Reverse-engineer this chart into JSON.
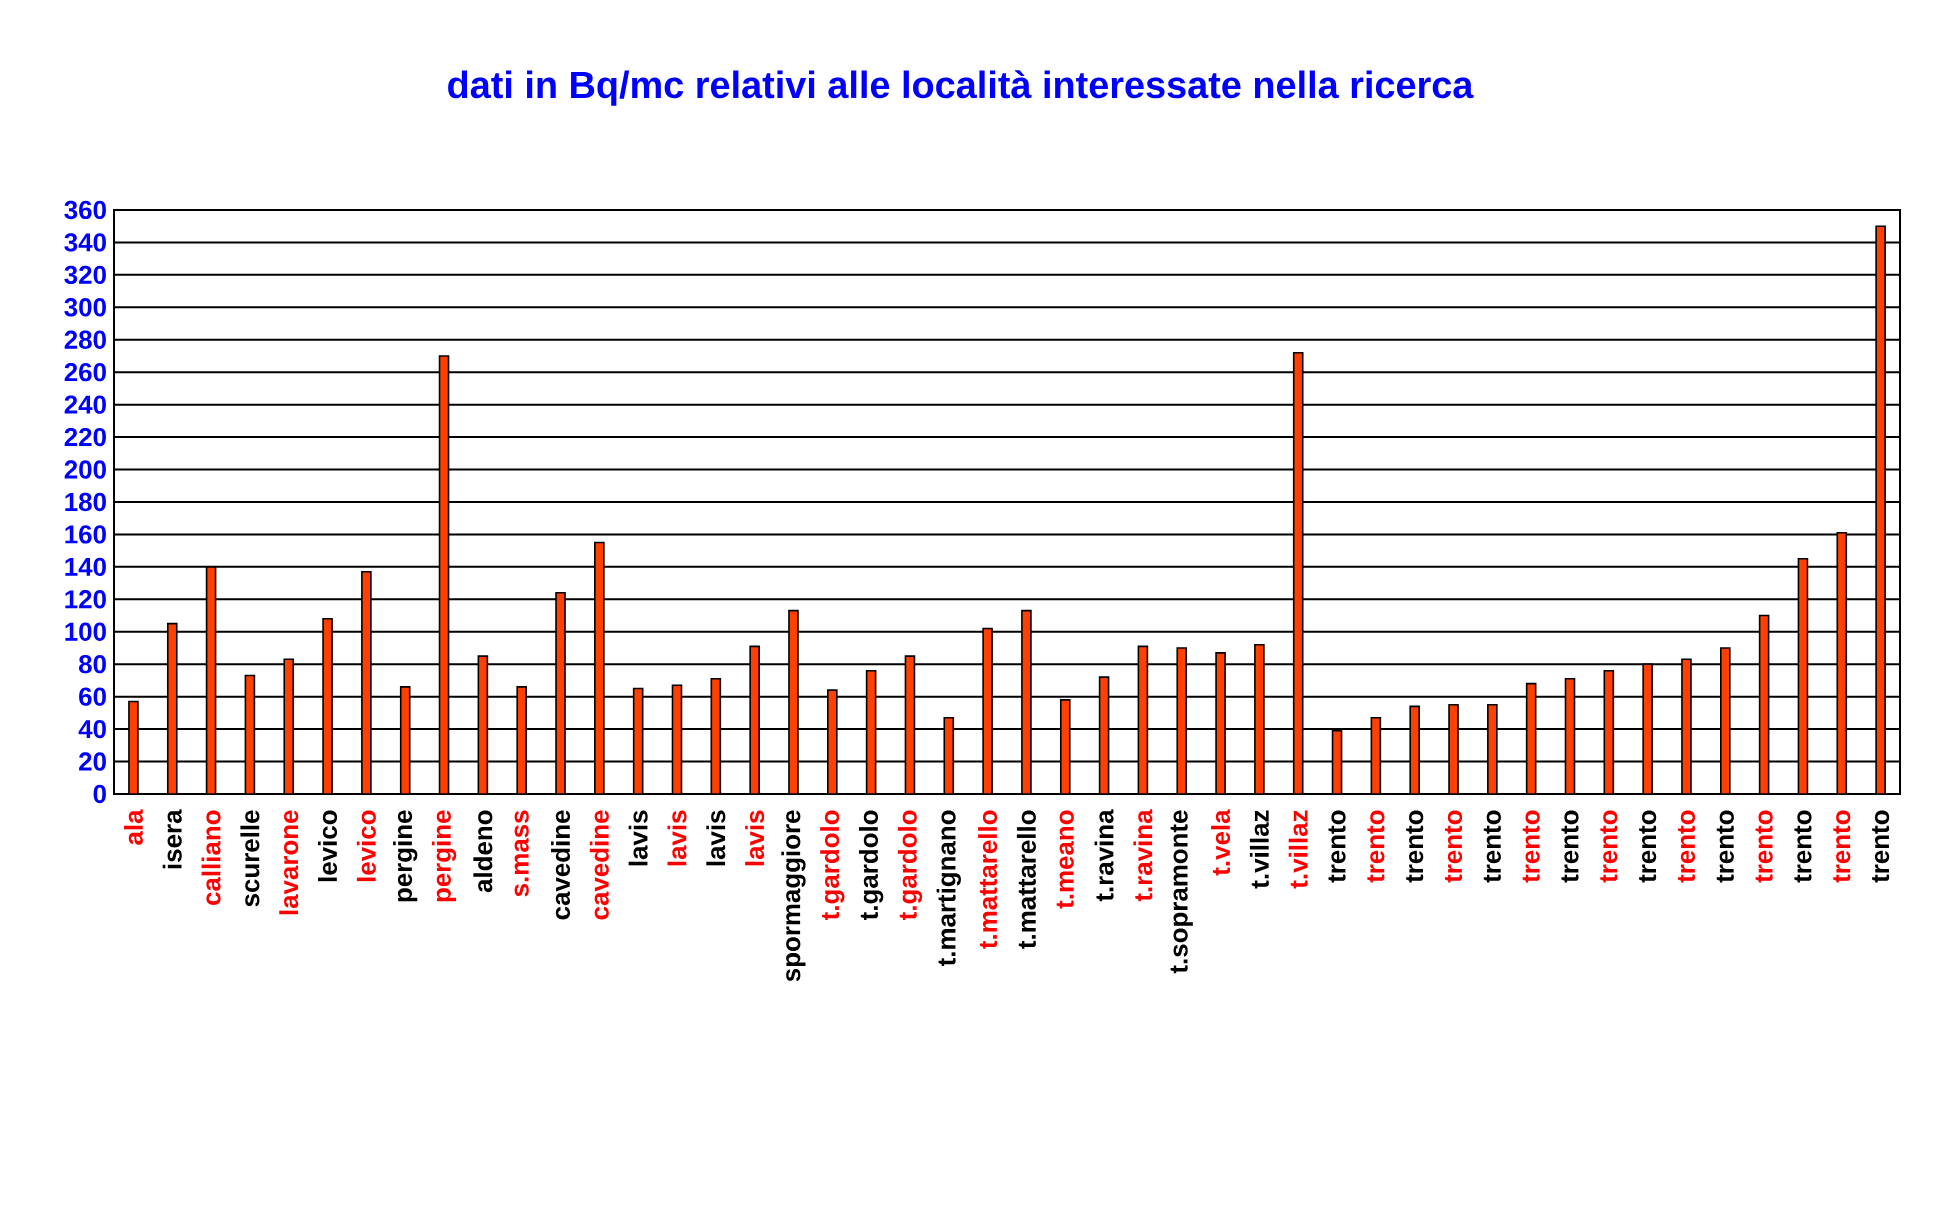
{
  "chart_data": {
    "type": "bar",
    "title": "dati in Bq/mc relativi alle località interessate nella ricerca",
    "categories": [
      "ala",
      "isera",
      "calliano",
      "scurelle",
      "lavarone",
      "levico",
      "levico",
      "pergine",
      "pergine",
      "aldeno",
      "s.mass",
      "cavedine",
      "cavedine",
      "lavis",
      "lavis",
      "lavis",
      "lavis",
      "spormaggiore",
      "t.gardolo",
      "t.gardolo",
      "t.gardolo",
      "t.martignano",
      "t.mattarello",
      "t.mattarello",
      "t.meano",
      "t.ravina",
      "t.ravina",
      "t.sopramonte",
      "t.vela",
      "t.villaz",
      "t.villaz",
      "trento",
      "trento",
      "trento",
      "trento",
      "trento",
      "trento",
      "trento",
      "trento",
      "trento",
      "trento",
      "trento",
      "trento",
      "trento",
      "trento",
      "trento"
    ],
    "values": [
      57,
      105,
      140,
      73,
      83,
      108,
      137,
      66,
      270,
      85,
      66,
      124,
      155,
      65,
      67,
      71,
      91,
      113,
      64,
      76,
      85,
      47,
      102,
      113,
      58,
      72,
      91,
      90,
      87,
      92,
      272,
      39,
      47,
      54,
      55,
      55,
      68,
      71,
      76,
      80,
      83,
      90,
      110,
      145,
      161,
      350
    ],
    "color": "#ff4000",
    "ylim": [
      0,
      360
    ],
    "yticks": [
      0,
      20,
      40,
      60,
      80,
      100,
      120,
      140,
      160,
      180,
      200,
      220,
      240,
      260,
      280,
      300,
      320,
      340,
      360
    ],
    "grid": "y"
  }
}
